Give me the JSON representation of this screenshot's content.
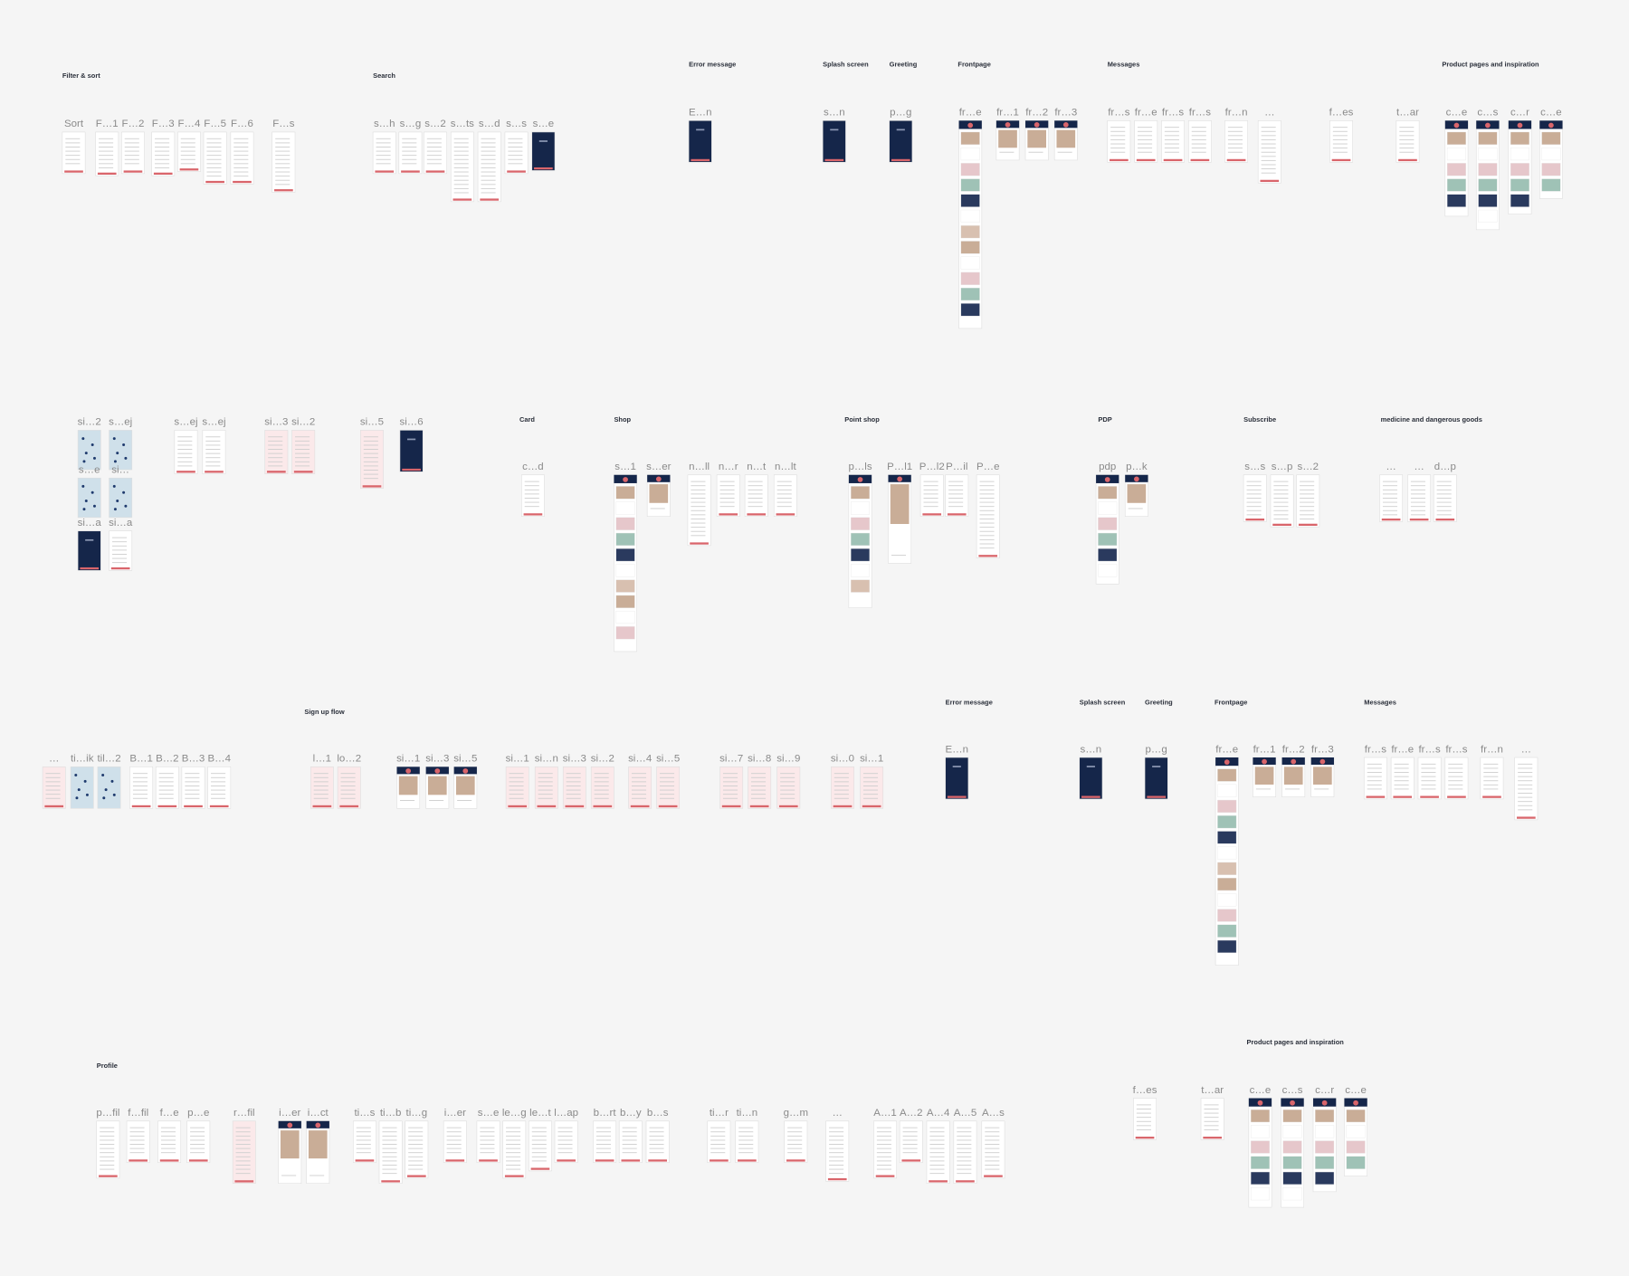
{
  "groups": [
    {
      "title": "Filter & sort",
      "frames": [
        "Sort",
        "F…1",
        "F…2",
        "F…3",
        "F…4",
        "F…5",
        "F…6",
        "F…s"
      ]
    },
    {
      "title": "Search",
      "frames": [
        "s…h",
        "s…g",
        "s…2",
        "s…ts",
        "s…d",
        "s…s",
        "s…e"
      ]
    },
    {
      "title": "Error message",
      "frames": [
        "E…n"
      ]
    },
    {
      "title": "Splash screen",
      "frames": [
        "s…n"
      ]
    },
    {
      "title": "Greeting",
      "frames": [
        "p…g"
      ]
    },
    {
      "title": "Frontpage",
      "frames": [
        "fr…e",
        "fr…1",
        "fr…2",
        "fr…3"
      ]
    },
    {
      "title": "Messages",
      "frames": [
        "fr…s",
        "fr…e",
        "fr…s",
        "fr…s",
        "fr…n",
        "…"
      ]
    },
    {
      "frames": [
        "f…es",
        "t…ar"
      ]
    },
    {
      "title": "Product pages and inspiration",
      "frames": [
        "c…e",
        "c…s",
        "c…r",
        "c…e"
      ]
    },
    {
      "frames": [
        "si…2",
        "s…ej",
        "s…e",
        "si…",
        "si…a",
        "si…a",
        "s…ej",
        "s…ej",
        "si…3",
        "si…2",
        "si…5",
        "si…6"
      ]
    },
    {
      "title": "Card",
      "frames": [
        "c…d"
      ]
    },
    {
      "title": "Shop",
      "frames": [
        "s…1",
        "s…er",
        "n…ll",
        "n…r",
        "n…t",
        "n…lt"
      ]
    },
    {
      "title": "Point shop",
      "frames": [
        "p…ls",
        "P…l1",
        "P…l2",
        "P…il",
        "P…e"
      ]
    },
    {
      "title": "PDP",
      "frames": [
        "pdp",
        "p…k"
      ]
    },
    {
      "title": "Subscribe",
      "frames": [
        "s…s",
        "s…p",
        "s…2"
      ]
    },
    {
      "title": "medicine and dangerous goods",
      "frames": [
        "…",
        "…",
        "d…p"
      ]
    },
    {
      "title": "Sign up flow",
      "frames": [
        "…",
        "ti…ik",
        "til…2",
        "B…1",
        "B…2",
        "B…3",
        "B…4",
        "l…1",
        "lo…2",
        "si…1",
        "si…3",
        "si…5",
        "si…1",
        "si…n",
        "si…3",
        "si…2",
        "si…4",
        "si…5",
        "si…7",
        "si…8",
        "si…9",
        "si…0",
        "si…1"
      ]
    },
    {
      "title": "Error message",
      "frames": [
        "E…n"
      ]
    },
    {
      "title": "Splash screen",
      "frames": [
        "s…n"
      ]
    },
    {
      "title": "Greeting",
      "frames": [
        "p…g"
      ]
    },
    {
      "title": "Frontpage",
      "frames": [
        "fr…e",
        "fr…1",
        "fr…2",
        "fr…3"
      ]
    },
    {
      "title": "Messages",
      "frames": [
        "fr…s",
        "fr…e",
        "fr…s",
        "fr…s",
        "fr…n",
        "…"
      ]
    },
    {
      "title": "Profile",
      "frames": [
        "p…fil",
        "f…fil",
        "f…e",
        "p…e",
        "r…fil",
        "i…er",
        "i…ct",
        "ti…s",
        "ti…b",
        "ti…g",
        "i…er",
        "s…e",
        "le…g",
        "le…t",
        "l…ap",
        "b…rt",
        "b…y",
        "b…s",
        "ti…r",
        "ti…n",
        "g…m",
        "…",
        "A…1",
        "A…2",
        "A…4",
        "A…5",
        "A…s"
      ]
    },
    {
      "frames": [
        "f…es",
        "t…ar"
      ]
    },
    {
      "title": "Product pages and inspiration",
      "frames": [
        "c…e",
        "c…s",
        "c…r",
        "c…e"
      ]
    }
  ]
}
